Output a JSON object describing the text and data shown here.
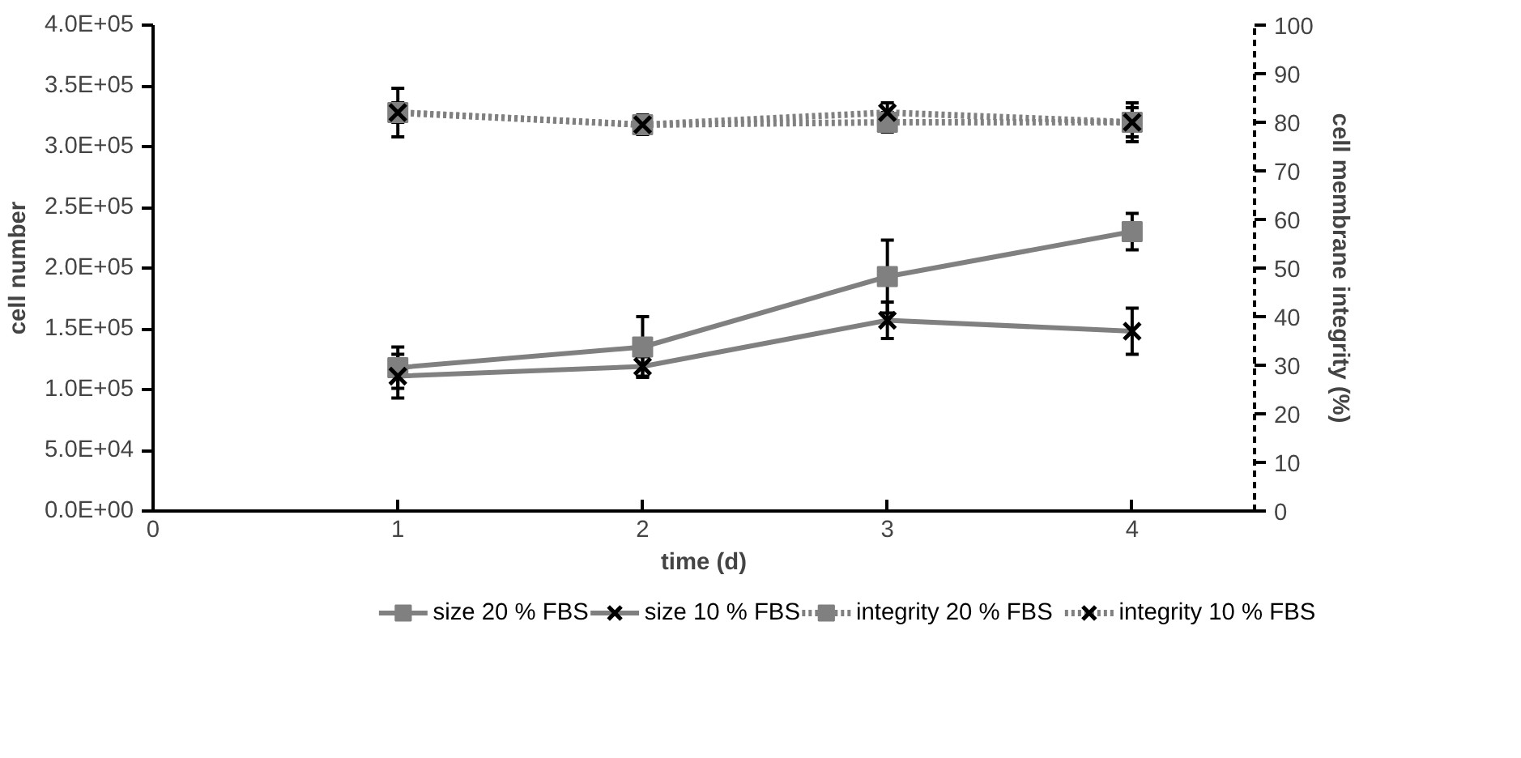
{
  "chart_data": {
    "type": "line",
    "xlabel": "time (d)",
    "ylabel": "cell number",
    "y2label": "cell membrane integrity (%)",
    "x": [
      1,
      2,
      3,
      4
    ],
    "xlim": [
      0,
      4.5
    ],
    "xticks": [
      0,
      1,
      2,
      3,
      4
    ],
    "ylim": [
      0,
      400000
    ],
    "yticks": [
      {
        "value": 0,
        "label": "0.0E+00"
      },
      {
        "value": 50000,
        "label": "5.0E+04"
      },
      {
        "value": 100000,
        "label": "1.0E+05"
      },
      {
        "value": 150000,
        "label": "1.5E+05"
      },
      {
        "value": 200000,
        "label": "2.0E+05"
      },
      {
        "value": 250000,
        "label": "2.5E+05"
      },
      {
        "value": 300000,
        "label": "3.0E+05"
      },
      {
        "value": 350000,
        "label": "3.5E+05"
      },
      {
        "value": 400000,
        "label": "4.0E+05"
      }
    ],
    "y2lim": [
      0,
      100
    ],
    "y2ticks": [
      0,
      10,
      20,
      30,
      40,
      50,
      60,
      70,
      80,
      90,
      100
    ],
    "grid": false,
    "legend": "bottom",
    "series": [
      {
        "name": "size 20 % FBS",
        "color": "#808080",
        "marker": "square",
        "line_style": "solid",
        "values": [
          118000,
          135000,
          193000,
          230000
        ],
        "errors": [
          17000,
          25000,
          30000,
          15000
        ]
      },
      {
        "name": "size 10 % FBS",
        "color": "#808080",
        "marker": "cross",
        "line_style": "solid",
        "values": [
          111000,
          119000,
          157000,
          148000
        ],
        "errors": [
          18000,
          8000,
          15000,
          19000
        ]
      },
      {
        "name": "integrity 20 % FBS",
        "color": "#808080",
        "marker": "square",
        "line_style": "dotted",
        "axis": "y2",
        "values": [
          82,
          79.5,
          80,
          80
        ],
        "errors": [
          2,
          1.5,
          2,
          3
        ]
      },
      {
        "name": "integrity 10 % FBS",
        "color": "#808080",
        "marker": "cross",
        "line_style": "dotted",
        "axis": "y2",
        "values": [
          82,
          79.5,
          82,
          80
        ],
        "errors": [
          5,
          2,
          2,
          4
        ]
      }
    ]
  }
}
